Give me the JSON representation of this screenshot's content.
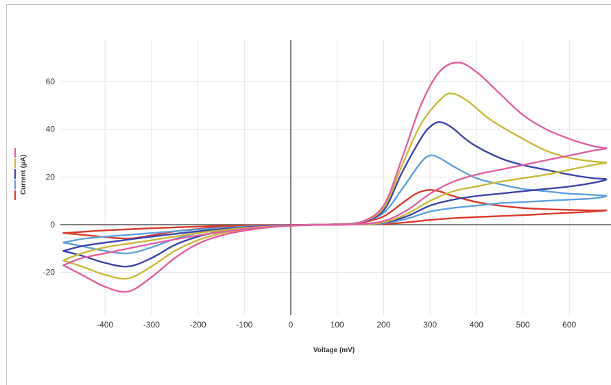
{
  "chart_data": {
    "type": "line",
    "title": "",
    "xlabel": "Voltage (mV)",
    "ylabel": "Current (µA)",
    "xlim": [
      -500,
      680
    ],
    "ylim": [
      -38,
      78
    ],
    "x_ticks": [
      -400,
      -300,
      -200,
      -100,
      0,
      100,
      200,
      300,
      400,
      500,
      600
    ],
    "y_ticks": [
      -20,
      0,
      20,
      40,
      60
    ],
    "grid": true,
    "legend": "left",
    "series": [
      {
        "color": "#e0609e",
        "points": [
          [
            -490,
            -17
          ],
          [
            -450,
            -21
          ],
          [
            -400,
            -26
          ],
          [
            -350,
            -28
          ],
          [
            -300,
            -22
          ],
          [
            -250,
            -14
          ],
          [
            -200,
            -8
          ],
          [
            -150,
            -4.5
          ],
          [
            -100,
            -2.5
          ],
          [
            -50,
            -1.2
          ],
          [
            0,
            -0.3
          ],
          [
            50,
            0
          ],
          [
            100,
            0.2
          ],
          [
            150,
            1
          ],
          [
            200,
            8
          ],
          [
            240,
            28
          ],
          [
            280,
            50
          ],
          [
            320,
            64
          ],
          [
            360,
            68
          ],
          [
            400,
            64
          ],
          [
            450,
            55
          ],
          [
            500,
            46
          ],
          [
            550,
            40
          ],
          [
            600,
            36
          ],
          [
            650,
            33
          ],
          [
            680,
            32
          ],
          [
            650,
            31
          ],
          [
            600,
            29
          ],
          [
            550,
            27
          ],
          [
            500,
            25
          ],
          [
            450,
            23
          ],
          [
            400,
            21
          ],
          [
            350,
            18
          ],
          [
            300,
            13
          ],
          [
            250,
            6
          ],
          [
            200,
            1.5
          ],
          [
            150,
            0.3
          ],
          [
            100,
            0
          ],
          [
            50,
            -0.1
          ],
          [
            0,
            -0.5
          ],
          [
            -50,
            -1
          ],
          [
            -100,
            -1.8
          ],
          [
            -200,
            -4.5
          ],
          [
            -300,
            -8
          ],
          [
            -400,
            -12
          ],
          [
            -450,
            -14
          ],
          [
            -490,
            -17
          ]
        ]
      },
      {
        "color": "#c8b93a",
        "points": [
          [
            -490,
            -15
          ],
          [
            -450,
            -17.5
          ],
          [
            -400,
            -21
          ],
          [
            -350,
            -22.5
          ],
          [
            -300,
            -17.5
          ],
          [
            -250,
            -11
          ],
          [
            -200,
            -6.5
          ],
          [
            -150,
            -3.6
          ],
          [
            -100,
            -2
          ],
          [
            -50,
            -1
          ],
          [
            0,
            -0.3
          ],
          [
            50,
            0
          ],
          [
            100,
            0.2
          ],
          [
            150,
            1
          ],
          [
            200,
            7
          ],
          [
            240,
            25
          ],
          [
            280,
            42
          ],
          [
            320,
            52
          ],
          [
            345,
            55
          ],
          [
            380,
            52
          ],
          [
            430,
            44
          ],
          [
            500,
            36
          ],
          [
            550,
            31
          ],
          [
            600,
            28
          ],
          [
            650,
            26.5
          ],
          [
            680,
            26
          ],
          [
            650,
            25
          ],
          [
            600,
            23
          ],
          [
            550,
            21
          ],
          [
            500,
            19.5
          ],
          [
            450,
            18
          ],
          [
            400,
            16
          ],
          [
            350,
            14
          ],
          [
            300,
            10
          ],
          [
            250,
            4.5
          ],
          [
            200,
            1
          ],
          [
            150,
            0.2
          ],
          [
            100,
            0
          ],
          [
            50,
            -0.1
          ],
          [
            0,
            -0.4
          ],
          [
            -50,
            -0.8
          ],
          [
            -100,
            -1.4
          ],
          [
            -200,
            -3.5
          ],
          [
            -300,
            -6.5
          ],
          [
            -400,
            -9.5
          ],
          [
            -450,
            -12
          ],
          [
            -490,
            -15
          ]
        ]
      },
      {
        "color": "#3d44a8",
        "points": [
          [
            -490,
            -11
          ],
          [
            -450,
            -13
          ],
          [
            -400,
            -16
          ],
          [
            -350,
            -17.5
          ],
          [
            -300,
            -14
          ],
          [
            -250,
            -8.5
          ],
          [
            -200,
            -5
          ],
          [
            -150,
            -2.8
          ],
          [
            -100,
            -1.6
          ],
          [
            -50,
            -0.8
          ],
          [
            0,
            -0.2
          ],
          [
            50,
            0
          ],
          [
            100,
            0.2
          ],
          [
            150,
            1
          ],
          [
            200,
            6
          ],
          [
            240,
            22
          ],
          [
            280,
            36
          ],
          [
            300,
            41
          ],
          [
            320,
            43
          ],
          [
            345,
            41
          ],
          [
            390,
            34
          ],
          [
            450,
            28
          ],
          [
            500,
            25
          ],
          [
            550,
            23
          ],
          [
            600,
            21
          ],
          [
            650,
            19.5
          ],
          [
            680,
            19
          ],
          [
            650,
            17.5
          ],
          [
            600,
            16
          ],
          [
            550,
            15
          ],
          [
            500,
            14
          ],
          [
            450,
            13
          ],
          [
            400,
            12
          ],
          [
            350,
            10.5
          ],
          [
            300,
            8
          ],
          [
            250,
            3.5
          ],
          [
            200,
            0.8
          ],
          [
            150,
            0.2
          ],
          [
            100,
            0
          ],
          [
            50,
            -0.1
          ],
          [
            0,
            -0.3
          ],
          [
            -50,
            -0.6
          ],
          [
            -100,
            -1.1
          ],
          [
            -200,
            -2.8
          ],
          [
            -300,
            -5
          ],
          [
            -400,
            -7.5
          ],
          [
            -450,
            -9
          ],
          [
            -490,
            -11
          ]
        ]
      },
      {
        "color": "#5fa0de",
        "points": [
          [
            -490,
            -7.5
          ],
          [
            -450,
            -9
          ],
          [
            -400,
            -11
          ],
          [
            -350,
            -12
          ],
          [
            -300,
            -9.5
          ],
          [
            -250,
            -6
          ],
          [
            -200,
            -3.5
          ],
          [
            -150,
            -2
          ],
          [
            -100,
            -1.2
          ],
          [
            -50,
            -0.6
          ],
          [
            0,
            -0.2
          ],
          [
            50,
            0
          ],
          [
            100,
            0.2
          ],
          [
            150,
            1
          ],
          [
            200,
            5
          ],
          [
            240,
            15
          ],
          [
            280,
            26
          ],
          [
            300,
            29
          ],
          [
            320,
            28
          ],
          [
            350,
            24.5
          ],
          [
            400,
            19.5
          ],
          [
            450,
            17
          ],
          [
            500,
            15
          ],
          [
            550,
            14
          ],
          [
            600,
            13
          ],
          [
            650,
            12.5
          ],
          [
            680,
            12
          ],
          [
            650,
            11
          ],
          [
            600,
            10.5
          ],
          [
            550,
            10
          ],
          [
            500,
            9.5
          ],
          [
            450,
            9
          ],
          [
            400,
            8
          ],
          [
            350,
            7
          ],
          [
            300,
            5.5
          ],
          [
            250,
            2.5
          ],
          [
            200,
            0.6
          ],
          [
            150,
            0.1
          ],
          [
            100,
            0
          ],
          [
            50,
            -0.1
          ],
          [
            0,
            -0.2
          ],
          [
            -50,
            -0.4
          ],
          [
            -100,
            -0.8
          ],
          [
            -200,
            -2
          ],
          [
            -300,
            -3.5
          ],
          [
            -400,
            -5
          ],
          [
            -450,
            -6
          ],
          [
            -490,
            -7.5
          ]
        ]
      },
      {
        "color": "#d93a2a",
        "points": [
          [
            -490,
            -3.5
          ],
          [
            -450,
            -4.2
          ],
          [
            -400,
            -5.2
          ],
          [
            -350,
            -5.8
          ],
          [
            -300,
            -4.5
          ],
          [
            -250,
            -2.8
          ],
          [
            -200,
            -1.8
          ],
          [
            -150,
            -1
          ],
          [
            -100,
            -0.6
          ],
          [
            -50,
            -0.3
          ],
          [
            0,
            -0.1
          ],
          [
            50,
            0
          ],
          [
            100,
            0.2
          ],
          [
            150,
            0.8
          ],
          [
            200,
            3.5
          ],
          [
            240,
            9
          ],
          [
            270,
            13
          ],
          [
            295,
            14.5
          ],
          [
            320,
            14
          ],
          [
            350,
            12
          ],
          [
            400,
            9.5
          ],
          [
            450,
            8
          ],
          [
            500,
            7
          ],
          [
            550,
            6.5
          ],
          [
            600,
            6.2
          ],
          [
            650,
            6
          ],
          [
            680,
            6
          ],
          [
            650,
            5.5
          ],
          [
            600,
            5
          ],
          [
            550,
            4.5
          ],
          [
            500,
            4
          ],
          [
            450,
            3.6
          ],
          [
            400,
            3.2
          ],
          [
            350,
            2.7
          ],
          [
            300,
            2
          ],
          [
            250,
            1
          ],
          [
            200,
            0.3
          ],
          [
            150,
            0.1
          ],
          [
            100,
            0
          ],
          [
            50,
            0
          ],
          [
            0,
            -0.1
          ],
          [
            -50,
            -0.2
          ],
          [
            -100,
            -0.3
          ],
          [
            -200,
            -0.8
          ],
          [
            -300,
            -1.5
          ],
          [
            -400,
            -2.4
          ],
          [
            -450,
            -3
          ],
          [
            -490,
            -3.5
          ]
        ]
      }
    ],
    "legend_colors": [
      "#e0609e",
      "#c8b93a",
      "#3d44a8",
      "#5fa0de",
      "#d93a2a"
    ]
  }
}
